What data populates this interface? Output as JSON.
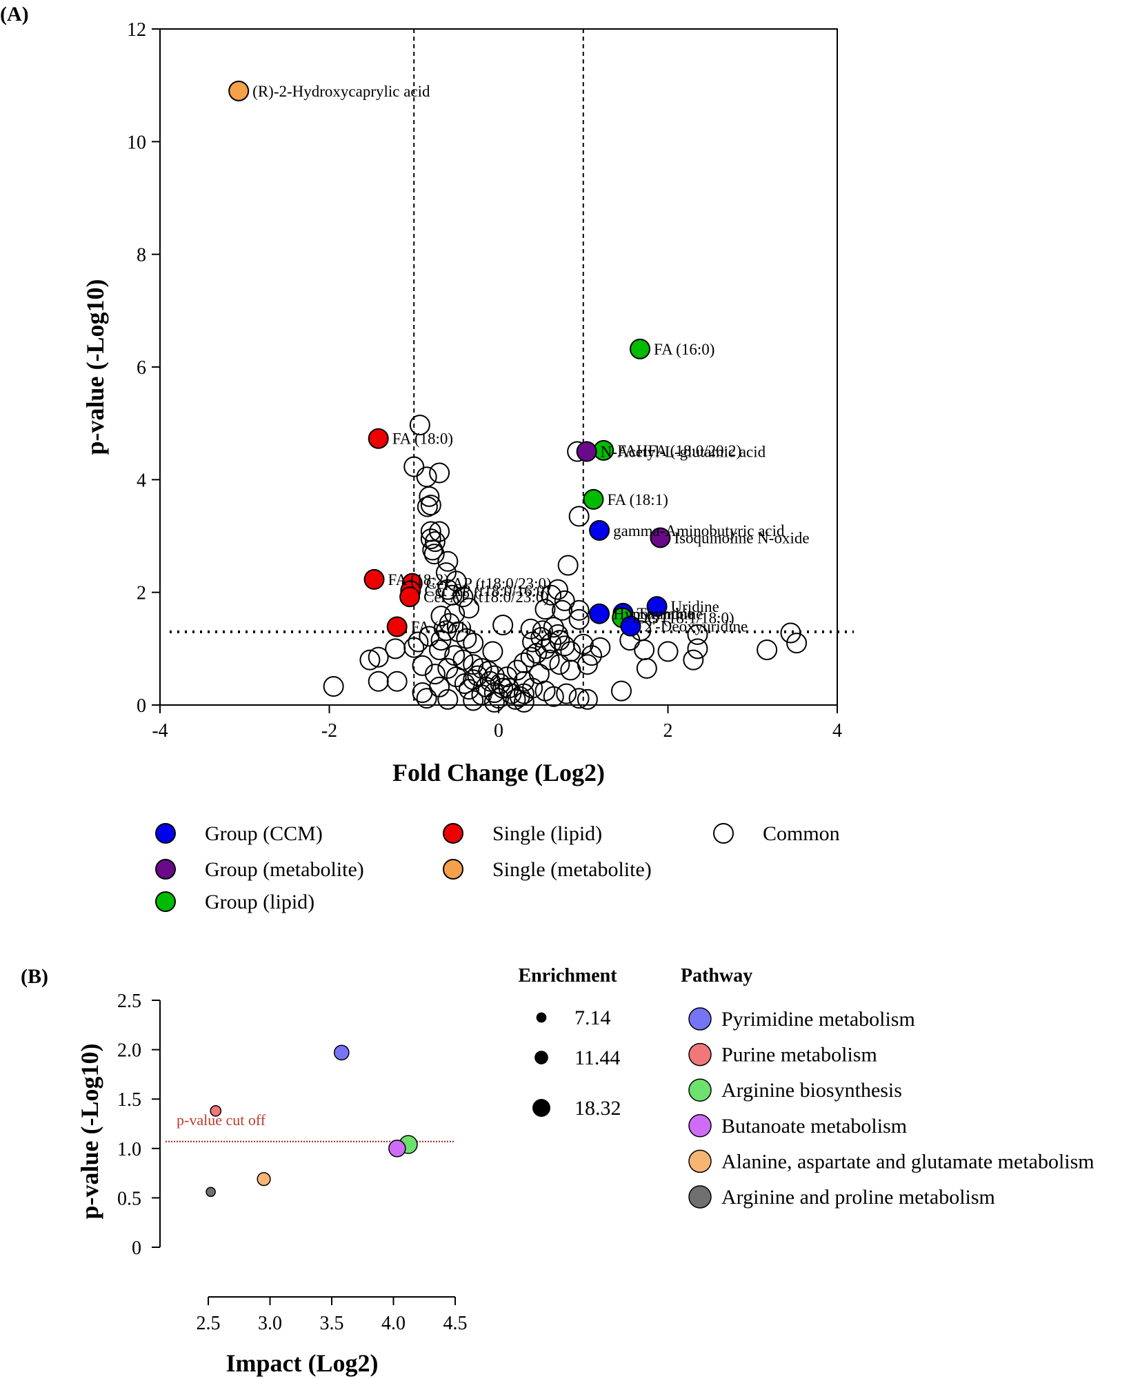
{
  "chart_data": [
    {
      "panel": "(A)",
      "type": "scatter",
      "title": "",
      "xlabel": "Fold Change (Log2)",
      "ylabel": "p-value (-Log10)",
      "xlim": [
        -4,
        4
      ],
      "ylim": [
        0,
        12
      ],
      "x_ticks": [
        "-4",
        "-2",
        "0",
        "2",
        "4"
      ],
      "y_ticks": [
        "0",
        "2",
        "4",
        "6",
        "8",
        "10",
        "12"
      ],
      "thresholds": {
        "fold_change": [
          -1,
          1
        ],
        "p_value": 1.3
      },
      "legend": [
        {
          "name": "Group (CCM)",
          "color": "#0000ee"
        },
        {
          "name": "Single (lipid)",
          "color": "#ee0000"
        },
        {
          "name": "Common",
          "color": "#ffffff"
        },
        {
          "name": "Group (metabolite)",
          "color": "#6a0a8a"
        },
        {
          "name": "Single (metabolite)",
          "color": "#f5a04a"
        },
        {
          "name": "Group (lipid)",
          "color": "#00bb00"
        }
      ],
      "labeled_points": [
        {
          "label": "(R)-2-Hydroxycaprylic acid",
          "x": -3.07,
          "y": 10.9,
          "group": "Single (metabolite)"
        },
        {
          "label": "FA (16:0)",
          "x": 1.67,
          "y": 6.32,
          "group": "Group (lipid)"
        },
        {
          "label": "FA (18:0)",
          "x": -1.42,
          "y": 4.73,
          "group": "Single (lipid)"
        },
        {
          "label": "FAHFA (18:0/20:2)",
          "x": 1.24,
          "y": 4.52,
          "group": "Group (lipid)"
        },
        {
          "label": "N-Acetyl-L-glutamic acid",
          "x": 1.04,
          "y": 4.5,
          "group": "Group (metabolite)"
        },
        {
          "label": "FA (18:1)",
          "x": 1.12,
          "y": 3.65,
          "group": "Group (lipid)"
        },
        {
          "label": "gamma-Aminobutyric acid",
          "x": 1.19,
          "y": 3.1,
          "group": "Group (CCM)"
        },
        {
          "label": "Isoquinoline N-oxide",
          "x": 1.91,
          "y": 2.97,
          "group": "Group (metabolite)"
        },
        {
          "label": "FA (18:2)",
          "x": -1.47,
          "y": 2.23,
          "group": "Single (lipid)"
        },
        {
          "label": "Cer AP (t18:0/23:0)",
          "x": -1.02,
          "y": 2.16,
          "group": "Single (lipid)"
        },
        {
          "label": "Cer AP (t18:0/16:0)",
          "x": -1.04,
          "y": 2.03,
          "group": "Single (lipid)"
        },
        {
          "label": "Cer AP (t18:0/23:0)",
          "x": -1.05,
          "y": 1.92,
          "group": "Single (lipid)"
        },
        {
          "label": "Uridine",
          "x": 1.87,
          "y": 1.75,
          "group": "Group (CCM)"
        },
        {
          "label": "Hypoxanthine",
          "x": 1.19,
          "y": 1.62,
          "group": "Group (CCM)"
        },
        {
          "label": "Thymine",
          "x": 1.47,
          "y": 1.63,
          "group": "Group (CCM)"
        },
        {
          "label": "DG (18:1/18:0)",
          "x": 1.46,
          "y": 1.55,
          "group": "Group (lipid)"
        },
        {
          "label": "2'-Deoxyuridine",
          "x": 1.56,
          "y": 1.4,
          "group": "Group (CCM)"
        },
        {
          "label": "FA (20:1)",
          "x": -1.2,
          "y": 1.39,
          "group": "Single (lipid)"
        }
      ],
      "common_points": [
        [
          -0.93,
          4.97
        ],
        [
          -1.0,
          4.23
        ],
        [
          -0.85,
          4.05
        ],
        [
          -0.7,
          4.12
        ],
        [
          -0.82,
          3.7
        ],
        [
          -0.84,
          3.52
        ],
        [
          -0.8,
          3.55
        ],
        [
          -0.8,
          3.08
        ],
        [
          -0.7,
          3.08
        ],
        [
          -0.8,
          2.95
        ],
        [
          -0.75,
          2.9
        ],
        [
          -0.78,
          2.75
        ],
        [
          -0.76,
          2.68
        ],
        [
          -0.6,
          2.55
        ],
        [
          -0.62,
          2.35
        ],
        [
          -0.5,
          2.2
        ],
        [
          -0.6,
          2.05
        ],
        [
          -0.55,
          1.95
        ],
        [
          -0.42,
          1.92
        ],
        [
          -0.35,
          1.72
        ],
        [
          -0.52,
          1.62
        ],
        [
          -0.68,
          1.58
        ],
        [
          -0.58,
          1.45
        ],
        [
          -0.62,
          1.32
        ],
        [
          -0.48,
          1.3
        ],
        [
          -0.38,
          1.18
        ],
        [
          -0.3,
          1.1
        ],
        [
          -0.68,
          1.15
        ],
        [
          -0.82,
          1.22
        ],
        [
          -0.95,
          1.12
        ],
        [
          -1.0,
          1.02
        ],
        [
          -0.7,
          0.98
        ],
        [
          -0.52,
          0.88
        ],
        [
          -0.42,
          0.8
        ],
        [
          -0.3,
          0.72
        ],
        [
          -0.2,
          0.65
        ],
        [
          -0.12,
          0.6
        ],
        [
          -0.05,
          0.52
        ],
        [
          -0.25,
          0.52
        ],
        [
          -0.3,
          0.45
        ],
        [
          -0.1,
          0.42
        ],
        [
          0.02,
          0.38
        ],
        [
          -0.4,
          0.38
        ],
        [
          -0.15,
          0.32
        ],
        [
          0.05,
          0.3
        ],
        [
          -0.35,
          0.28
        ],
        [
          -0.05,
          0.22
        ],
        [
          0.15,
          0.2
        ],
        [
          -0.2,
          0.18
        ],
        [
          0.0,
          0.12
        ],
        [
          0.2,
          0.1
        ],
        [
          -0.3,
          0.08
        ],
        [
          -0.05,
          0.05
        ],
        [
          0.3,
          0.05
        ],
        [
          -0.6,
          0.1
        ],
        [
          -0.85,
          0.12
        ],
        [
          -0.9,
          0.22
        ],
        [
          -0.7,
          0.32
        ],
        [
          -0.75,
          0.55
        ],
        [
          -0.6,
          0.65
        ],
        [
          -0.5,
          0.5
        ],
        [
          -0.9,
          0.7
        ],
        [
          -1.2,
          0.42
        ],
        [
          -1.42,
          0.42
        ],
        [
          -1.52,
          0.8
        ],
        [
          -1.42,
          0.85
        ],
        [
          -1.95,
          0.33
        ],
        [
          -1.22,
          1.0
        ],
        [
          0.1,
          0.5
        ],
        [
          0.22,
          0.62
        ],
        [
          0.3,
          0.75
        ],
        [
          0.38,
          0.85
        ],
        [
          0.45,
          0.92
        ],
        [
          0.55,
          1.0
        ],
        [
          0.62,
          1.1
        ],
        [
          0.4,
          1.12
        ],
        [
          0.5,
          1.2
        ],
        [
          0.38,
          1.35
        ],
        [
          0.52,
          1.32
        ],
        [
          0.7,
          1.25
        ],
        [
          0.78,
          1.05
        ],
        [
          0.85,
          0.95
        ],
        [
          0.6,
          0.8
        ],
        [
          0.72,
          0.72
        ],
        [
          0.85,
          0.62
        ],
        [
          0.48,
          0.55
        ],
        [
          0.3,
          0.42
        ],
        [
          0.4,
          0.3
        ],
        [
          0.55,
          0.25
        ],
        [
          0.65,
          0.15
        ],
        [
          0.8,
          0.2
        ],
        [
          0.95,
          0.12
        ],
        [
          1.05,
          0.1
        ],
        [
          0.25,
          0.15
        ],
        [
          -0.07,
          0.95
        ],
        [
          0.05,
          1.42
        ],
        [
          0.3,
          0.2
        ],
        [
          0.12,
          0.3
        ],
        [
          0.55,
          1.7
        ],
        [
          0.75,
          1.68
        ],
        [
          0.95,
          1.68
        ],
        [
          0.78,
          1.85
        ],
        [
          0.62,
          1.95
        ],
        [
          0.7,
          2.05
        ],
        [
          0.82,
          2.48
        ],
        [
          0.95,
          1.52
        ],
        [
          1.1,
          0.88
        ],
        [
          1.05,
          0.72
        ],
        [
          1.0,
          1.08
        ],
        [
          1.2,
          1.02
        ],
        [
          0.95,
          3.35
        ],
        [
          0.93,
          4.5
        ],
        [
          0.72,
          1.15
        ],
        [
          0.65,
          1.38
        ],
        [
          1.55,
          1.15
        ],
        [
          1.68,
          1.32
        ],
        [
          1.72,
          0.98
        ],
        [
          1.75,
          0.65
        ],
        [
          2.0,
          0.95
        ],
        [
          2.3,
          0.8
        ],
        [
          2.35,
          1.0
        ],
        [
          2.35,
          1.25
        ],
        [
          1.45,
          0.25
        ],
        [
          3.17,
          0.98
        ],
        [
          3.45,
          1.28
        ],
        [
          3.52,
          1.1
        ]
      ]
    },
    {
      "panel": "(B)",
      "type": "scatter",
      "title": "",
      "xlabel": "Impact (Log2)",
      "ylabel": "p-value (-Log10)",
      "xlim": [
        2.5,
        4.5
      ],
      "ylim": [
        0,
        2.5
      ],
      "x_ticks": [
        "2.5",
        "3.0",
        "3.5",
        "4.0",
        "4.5"
      ],
      "y_ticks": [
        "0",
        "0.5",
        "1.0",
        "1.5",
        "2.0",
        "2.5"
      ],
      "cutoff": {
        "label": "p-value cut off",
        "value": 1.07
      },
      "size_legend_title": "Enrichment",
      "size_legend": [
        {
          "label": "7.14",
          "value": 7.14
        },
        {
          "label": "11.44",
          "value": 11.44
        },
        {
          "label": "18.32",
          "value": 18.32
        }
      ],
      "pathway_legend_title": "Pathway",
      "series": [
        {
          "name": "Pyrimidine metabolism",
          "x": 3.58,
          "y": 1.97,
          "enrichment": 13.0,
          "color": "#7474f5"
        },
        {
          "name": "Purine metabolism",
          "x": 2.56,
          "y": 1.38,
          "enrichment": 7.5,
          "color": "#f07878"
        },
        {
          "name": "Arginine biosynthesis",
          "x": 4.12,
          "y": 1.04,
          "enrichment": 18.32,
          "color": "#6ee06e"
        },
        {
          "name": "Butanoate metabolism",
          "x": 4.03,
          "y": 1.0,
          "enrichment": 16.0,
          "color": "#cf6cf5"
        },
        {
          "name": "Alanine, aspartate and glutamate metabolism",
          "x": 2.95,
          "y": 0.69,
          "enrichment": 10.5,
          "color": "#f7b574"
        },
        {
          "name": "Arginine and proline metabolism",
          "x": 2.52,
          "y": 0.56,
          "enrichment": 6.0,
          "color": "#707070"
        }
      ]
    }
  ]
}
